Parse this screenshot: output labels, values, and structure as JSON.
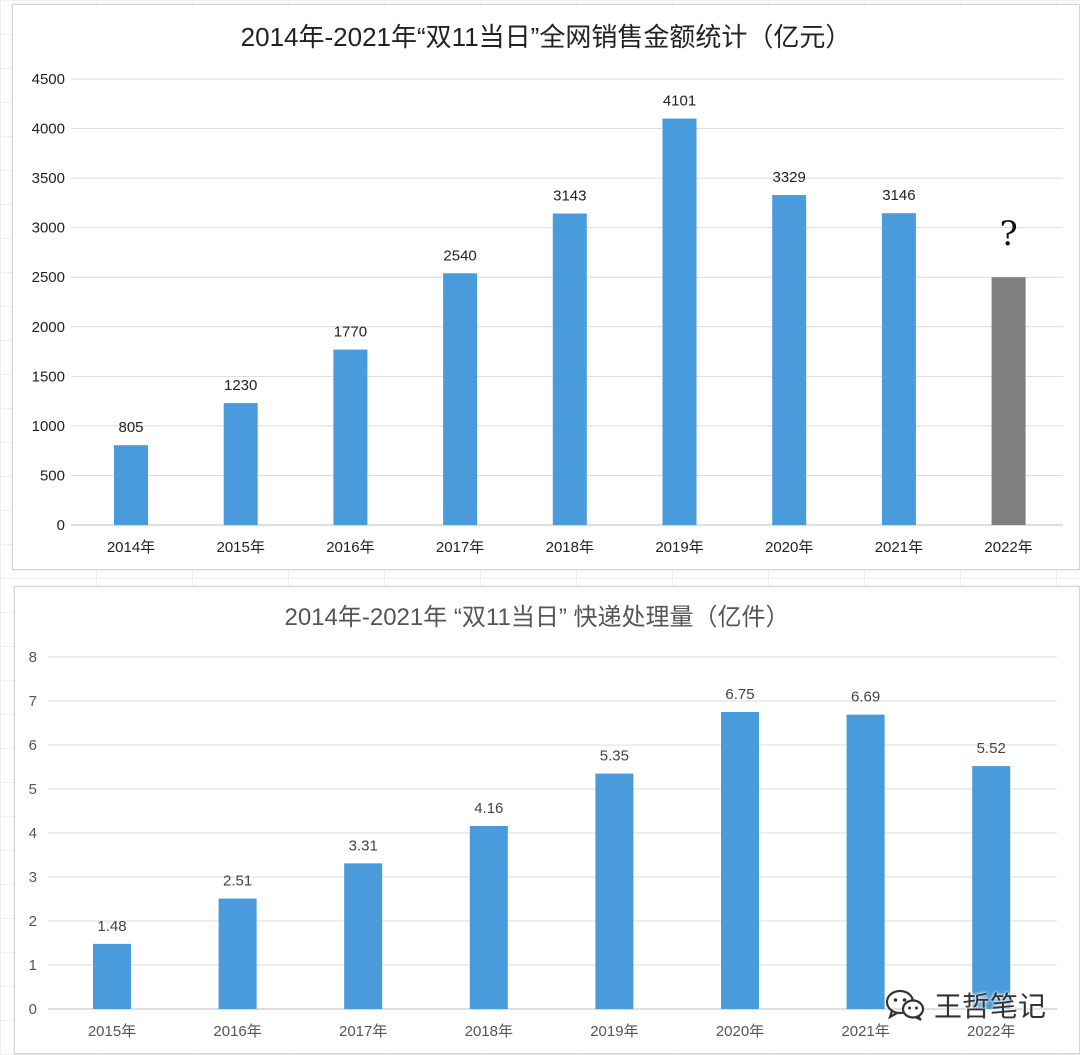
{
  "chart_data": [
    {
      "type": "bar",
      "title": "2014年-2021年“双11当日”全网销售金额统计（亿元）",
      "xlabel": "",
      "ylabel": "",
      "categories": [
        "2014年",
        "2015年",
        "2016年",
        "2017年",
        "2018年",
        "2019年",
        "2020年",
        "2021年",
        "2022年"
      ],
      "values": [
        805,
        1230,
        1770,
        2540,
        3143,
        4101,
        3329,
        3146,
        2500
      ],
      "data_labels": [
        "805",
        "1230",
        "1770",
        "2540",
        "3143",
        "4101",
        "3329",
        "3146",
        "?"
      ],
      "ylim": [
        0,
        4500
      ],
      "yticks": [
        0,
        500,
        1000,
        1500,
        2000,
        2500,
        3000,
        3500,
        4000,
        4500
      ],
      "grid": true,
      "bar_color": "#4a9bdb",
      "highlight_color": "#7f7f7f",
      "highlight_index": 8
    },
    {
      "type": "bar",
      "title": "2014年-2021年 “双11当日” 快递处理量（亿件）",
      "xlabel": "",
      "ylabel": "",
      "categories": [
        "2015年",
        "2016年",
        "2017年",
        "2018年",
        "2019年",
        "2020年",
        "2021年",
        "2022年"
      ],
      "values": [
        1.48,
        2.51,
        3.31,
        4.16,
        5.35,
        6.75,
        6.69,
        5.52
      ],
      "data_labels": [
        "1.48",
        "2.51",
        "3.31",
        "4.16",
        "5.35",
        "6.75",
        "6.69",
        "5.52"
      ],
      "ylim": [
        0,
        8
      ],
      "yticks": [
        0,
        1,
        2,
        3,
        4,
        5,
        6,
        7,
        8
      ],
      "grid": true,
      "bar_color": "#4a9bdb"
    }
  ],
  "watermark": {
    "icon": "wechat-icon",
    "text": "王哲笔记"
  }
}
